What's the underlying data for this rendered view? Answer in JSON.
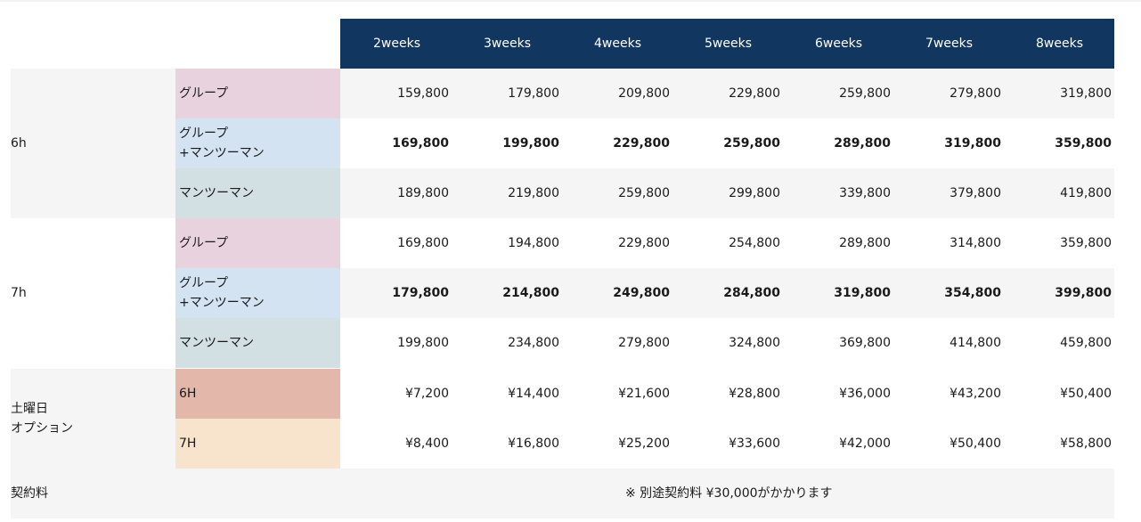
{
  "header": {
    "weeks": [
      "2weeks",
      "3weeks",
      "4weeks",
      "5weeks",
      "6weeks",
      "7weeks",
      "8weeks"
    ]
  },
  "sections": [
    {
      "label": "6h",
      "rows": [
        {
          "category": [
            "グループ"
          ],
          "color": "#e8d2de",
          "bold": false,
          "values": [
            "159,800",
            "179,800",
            "209,800",
            "229,800",
            "259,800",
            "279,800",
            "319,800"
          ]
        },
        {
          "category": [
            "グループ",
            "+マンツーマン"
          ],
          "color": "#d3e3f2",
          "bold": true,
          "values": [
            "169,800",
            "199,800",
            "229,800",
            "259,800",
            "289,800",
            "319,800",
            "359,800"
          ]
        },
        {
          "category": [
            "マンツーマン"
          ],
          "color": "#d3e0e3",
          "bold": false,
          "values": [
            "189,800",
            "219,800",
            "259,800",
            "299,800",
            "339,800",
            "379,800",
            "419,800"
          ]
        }
      ]
    },
    {
      "label": "7h",
      "rows": [
        {
          "category": [
            "グループ"
          ],
          "color": "#e8d2de",
          "bold": false,
          "values": [
            "169,800",
            "194,800",
            "229,800",
            "254,800",
            "289,800",
            "314,800",
            "359,800"
          ]
        },
        {
          "category": [
            "グループ",
            "+マンツーマン"
          ],
          "color": "#d3e3f2",
          "bold": true,
          "values": [
            "179,800",
            "214,800",
            "249,800",
            "284,800",
            "319,800",
            "354,800",
            "399,800"
          ]
        },
        {
          "category": [
            "マンツーマン"
          ],
          "color": "#d3e0e3",
          "bold": false,
          "values": [
            "199,800",
            "234,800",
            "279,800",
            "324,800",
            "369,800",
            "414,800",
            "459,800"
          ]
        }
      ]
    },
    {
      "label": [
        "土曜日",
        "オプション"
      ],
      "rows": [
        {
          "category": [
            "6H"
          ],
          "color": "#e3b8ab",
          "bold": false,
          "values": [
            "¥7,200",
            "¥14,400",
            "¥21,600",
            "¥28,800",
            "¥36,000",
            "¥43,200",
            "¥50,400"
          ]
        },
        {
          "category": [
            "7H"
          ],
          "color": "#f8e4cd",
          "bold": false,
          "values": [
            "¥8,400",
            "¥16,800",
            "¥25,200",
            "¥33,600",
            "¥42,000",
            "¥50,400",
            "¥58,800"
          ]
        }
      ]
    }
  ],
  "contract": {
    "label": "契約料",
    "note": "※ 別途契約料 ¥30,000がかかります"
  },
  "colors": {
    "header_bg": "#113761",
    "band_grey": "#f5f5f5"
  }
}
